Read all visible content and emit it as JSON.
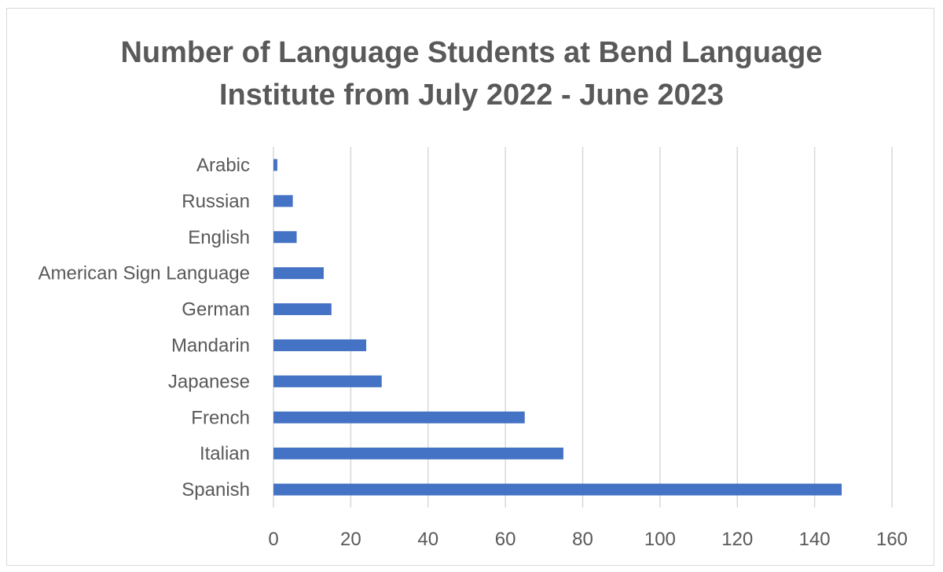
{
  "chart_data": {
    "type": "bar",
    "orientation": "horizontal",
    "title": "Number of Language Students at Bend Language Institute from July 2022 - June 2023",
    "title_lines": [
      "Number of Language Students at Bend Language",
      "Institute from July 2022 - June 2023"
    ],
    "categories": [
      "Spanish",
      "Italian",
      "French",
      "Japanese",
      "Mandarin",
      "German",
      "American Sign Language",
      "English",
      "Russian",
      "Arabic"
    ],
    "values": [
      147,
      75,
      65,
      28,
      24,
      15,
      13,
      6,
      5,
      1
    ],
    "xlabel": "",
    "ylabel": "",
    "xlim": [
      0,
      160
    ],
    "xticks": [
      0,
      20,
      40,
      60,
      80,
      100,
      120,
      140,
      160
    ],
    "grid": true,
    "legend": "none",
    "colors": {
      "bar": "#4472c4",
      "grid": "#d9d9d9",
      "text": "#595959",
      "border": "#d9d9d9"
    }
  }
}
